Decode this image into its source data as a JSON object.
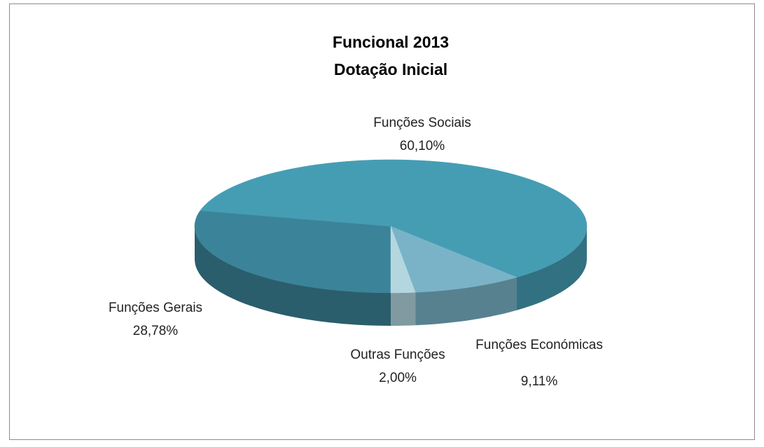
{
  "chart_data": {
    "type": "pie",
    "title": "Funcional 2013",
    "subtitle": "Dotação Inicial",
    "categories": [
      "Funções Gerais",
      "Funções Sociais",
      "Funções Económicas",
      "Outras Funções"
    ],
    "values": [
      28.78,
      60.1,
      9.11,
      2.0
    ],
    "value_labels": [
      "28,78%",
      "60,10%",
      "9,11%",
      "2,00%"
    ],
    "colors": [
      "#3b8398",
      "#459db4",
      "#7ab3c7",
      "#b3d6df"
    ],
    "three_d": true
  }
}
